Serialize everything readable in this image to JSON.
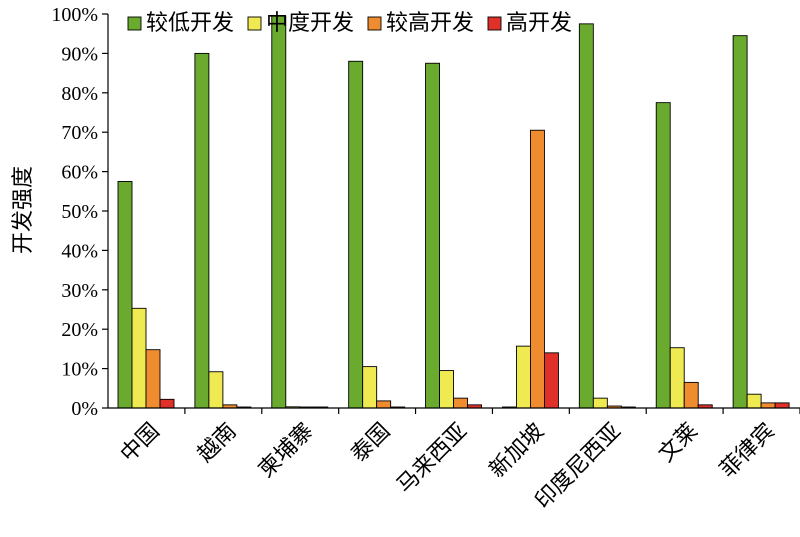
{
  "chart_data": {
    "type": "bar",
    "title": "",
    "xlabel": "",
    "ylabel": "开发强度",
    "ylim": [
      0,
      100
    ],
    "y_ticks": [
      "0%",
      "10%",
      "20%",
      "30%",
      "40%",
      "50%",
      "60%",
      "70%",
      "80%",
      "90%",
      "100%"
    ],
    "categories": [
      "中国",
      "越南",
      "柬埔寨",
      "泰国",
      "马来西亚",
      "新加坡",
      "印度尼西亚",
      "文莱",
      "菲律宾"
    ],
    "legend_position": "top",
    "grid": false,
    "series": [
      {
        "name": "较低开发",
        "color": "#6aaa2e",
        "values": [
          57.5,
          90,
          99.5,
          88,
          87.5,
          0,
          97.5,
          77.5,
          94.5
        ]
      },
      {
        "name": "中度开发",
        "color": "#f0ea52",
        "values": [
          25.3,
          9.2,
          0.3,
          10.5,
          9.5,
          15.7,
          2.5,
          15.3,
          3.5
        ]
      },
      {
        "name": "较高开发",
        "color": "#f08c30",
        "values": [
          14.8,
          0.8,
          0,
          1.8,
          2.5,
          70.5,
          0.5,
          6.5,
          1.3
        ]
      },
      {
        "name": "高开发",
        "color": "#e0302a",
        "values": [
          2.2,
          0,
          0,
          0,
          0.8,
          14,
          0,
          0.8,
          1.3
        ]
      }
    ]
  }
}
